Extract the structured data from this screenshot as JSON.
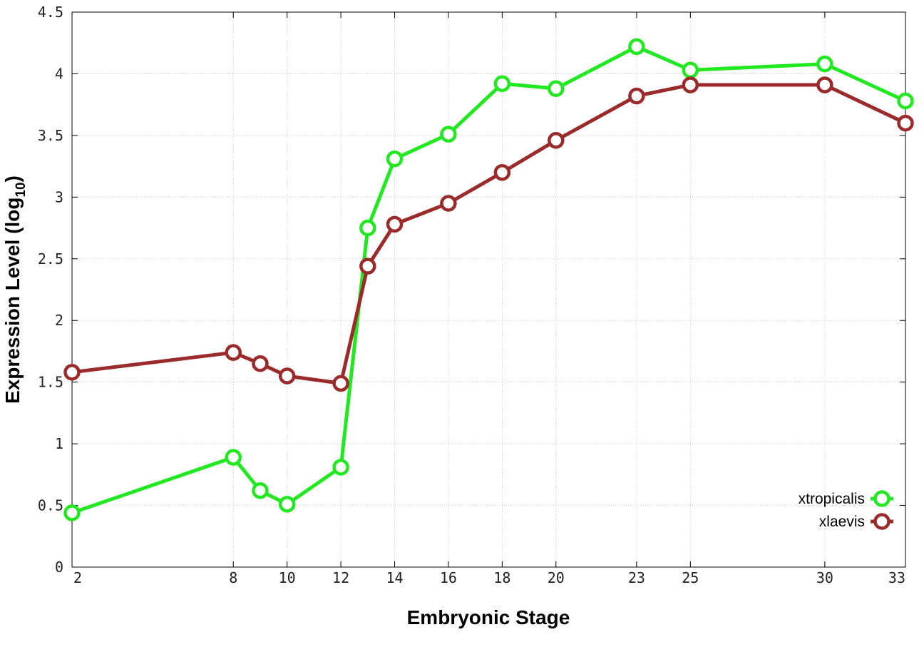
{
  "chart_data": {
    "type": "line",
    "xlabel": "Embryonic Stage",
    "ylabel": "Expression Level (log",
    "ylabel_subscript": "10",
    "ylabel_close": ")",
    "xlim": [
      2,
      33
    ],
    "ylim": [
      0,
      4.5
    ],
    "x_ticks": [
      2,
      8,
      10,
      12,
      14,
      16,
      18,
      20,
      23,
      25,
      30,
      33
    ],
    "y_ticks": [
      0,
      0.5,
      1,
      1.5,
      2,
      2.5,
      3,
      3.5,
      4,
      4.5
    ],
    "y_tick_labels": [
      "0",
      "0.5",
      "1",
      "1.5",
      "2",
      "2.5",
      "3",
      "3.5",
      "4",
      "4.5"
    ],
    "x": [
      2,
      8,
      9,
      10,
      12,
      13,
      14,
      16,
      18,
      20,
      23,
      25,
      30,
      33
    ],
    "grid": true,
    "legend_position": "bottom-right",
    "series": [
      {
        "name": "xtropicalis",
        "color": "#22e822",
        "values": [
          0.44,
          0.89,
          0.62,
          0.51,
          0.81,
          2.75,
          3.31,
          3.51,
          3.92,
          3.88,
          4.22,
          4.03,
          4.08,
          3.78
        ]
      },
      {
        "name": "xlaevis",
        "color": "#9b2a2a",
        "values": [
          1.58,
          1.74,
          1.65,
          1.55,
          1.49,
          2.44,
          2.78,
          2.95,
          3.2,
          3.46,
          3.82,
          3.91,
          3.91,
          3.6
        ]
      }
    ]
  }
}
